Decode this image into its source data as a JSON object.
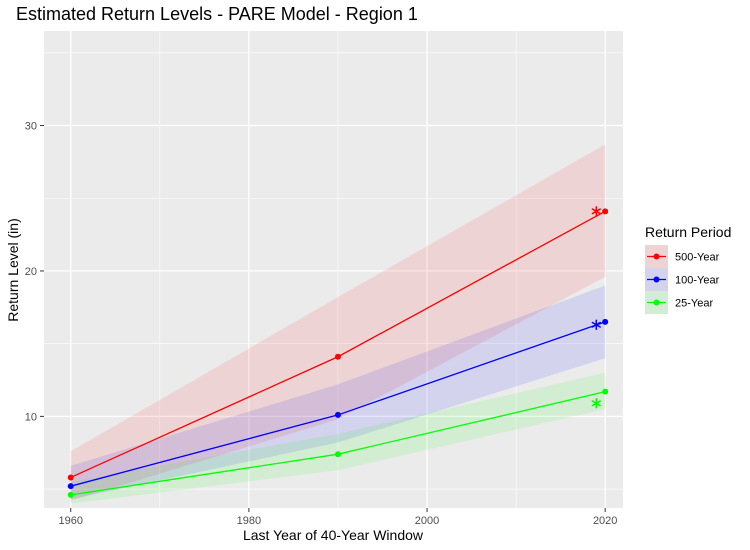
{
  "chart_data": {
    "type": "line",
    "title": "Estimated Return Levels - PARE Model - Region 1",
    "xlabel": "Last Year of 40-Year Window",
    "ylabel": "Return Level (in)",
    "xlim": [
      1957,
      2022
    ],
    "ylim": [
      3.7,
      36.5
    ],
    "x_ticks": [
      "1960",
      "1980",
      "2000",
      "2020"
    ],
    "y_ticks": [
      "10",
      "20",
      "30"
    ],
    "grid": true,
    "legend_title": "Return Period",
    "legend_position": "right",
    "x": [
      1960,
      1990,
      2020
    ],
    "series": [
      {
        "name": "500-Year",
        "color": "#ff0000",
        "values": [
          5.8,
          14.1,
          24.1
        ],
        "lower": [
          4.2,
          9.8,
          19.6
        ],
        "upper": [
          7.6,
          18.2,
          28.7
        ],
        "star": {
          "x": 2019,
          "y": 24.1
        }
      },
      {
        "name": "100-Year",
        "color": "#0000ff",
        "values": [
          5.2,
          10.1,
          16.5
        ],
        "lower": [
          4.3,
          8.2,
          14.0
        ],
        "upper": [
          6.6,
          12.2,
          19.0
        ],
        "star": {
          "x": 2019,
          "y": 16.3
        }
      },
      {
        "name": "25-Year",
        "color": "#00ff00",
        "values": [
          4.6,
          7.4,
          11.7
        ],
        "lower": [
          4.0,
          6.3,
          10.5
        ],
        "upper": [
          5.5,
          8.8,
          13.0
        ],
        "star": {
          "x": 2019,
          "y": 10.9
        }
      }
    ]
  }
}
